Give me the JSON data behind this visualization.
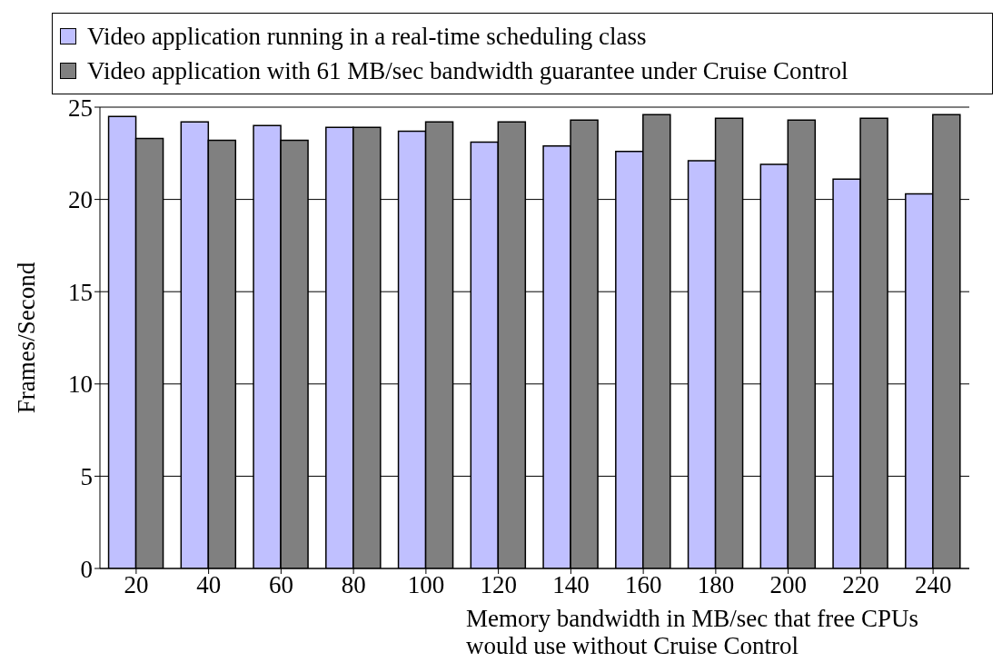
{
  "chart_data": {
    "type": "bar",
    "xlabel": "Memory bandwidth in MB/sec that free CPUs would use without Cruise Control",
    "ylabel": "Frames/Second",
    "categories": [
      "20",
      "40",
      "60",
      "80",
      "100",
      "120",
      "140",
      "160",
      "180",
      "200",
      "220",
      "240"
    ],
    "series": [
      {
        "name": "Video application running in a real-time scheduling class",
        "color": "#c0c0ff",
        "values": [
          24.5,
          24.2,
          24.0,
          23.9,
          23.7,
          23.1,
          22.9,
          22.6,
          22.1,
          21.9,
          21.1,
          20.3
        ]
      },
      {
        "name": "Video application with 61 MB/sec bandwidth guarantee under Cruise Control",
        "color": "#808080",
        "values": [
          23.3,
          23.2,
          23.2,
          23.9,
          24.2,
          24.2,
          24.3,
          24.6,
          24.4,
          24.3,
          24.4,
          24.6
        ]
      }
    ],
    "ylim": [
      0,
      25
    ],
    "yticks": [
      0,
      5,
      10,
      15,
      20,
      25
    ],
    "grid": "y",
    "legend": "top"
  }
}
